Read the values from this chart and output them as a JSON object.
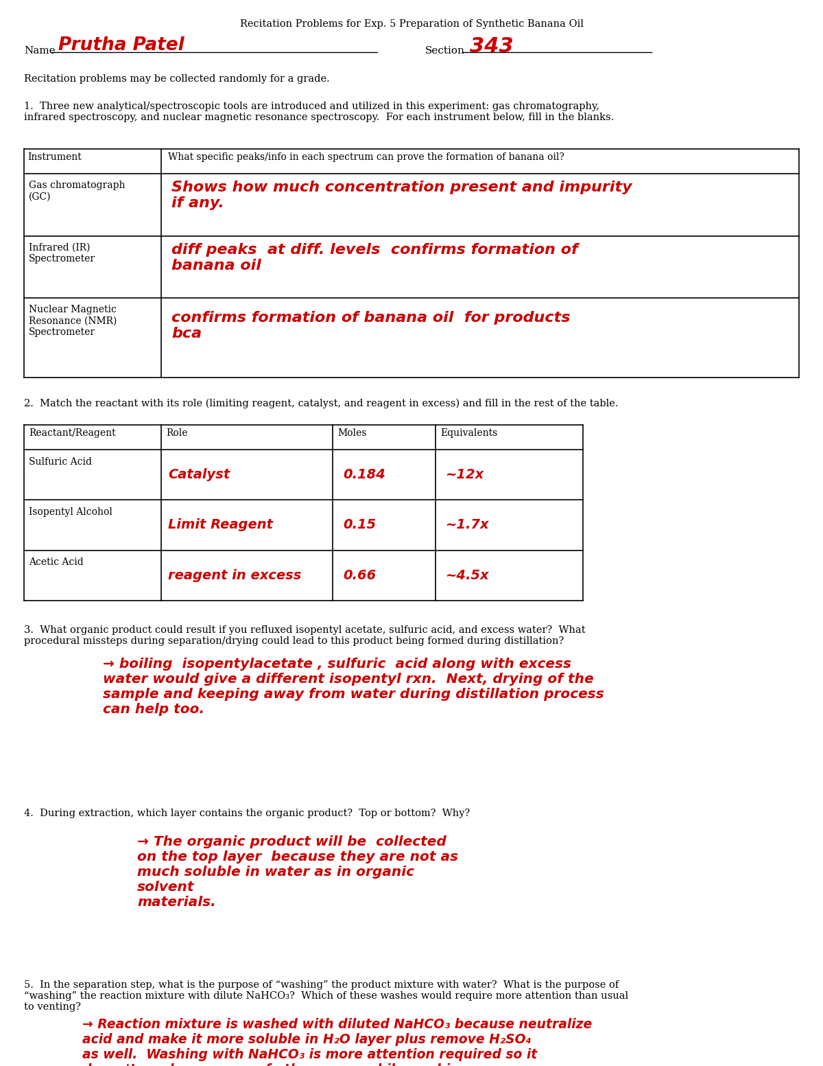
{
  "title": "Recitation Problems for Exp. 5 Preparation of Synthetic Banana Oil",
  "name_label": "Name",
  "name_value": "Prutha Patel",
  "section_label": "Section",
  "section_value": "343",
  "intro_text": "Recitation problems may be collected randomly for a grade.",
  "q1_text": "1.  Three new analytical/spectroscopic tools are introduced and utilized in this experiment: gas chromatography,\ninfrared spectroscopy, and nuclear magnetic resonance spectroscopy.  For each instrument below, fill in the blanks.",
  "table1_headers": [
    "Instrument",
    "What specific peaks/info in each spectrum can prove the formation of banana oil?"
  ],
  "table1_rows": [
    [
      "Gas chromatograph\n(GC)",
      "Shows how much concentration present and impurity\nif any."
    ],
    [
      "Infrared (IR)\nSpectrometer",
      "diff peaks  at diff. levels  confirms formation of\nbanana oil"
    ],
    [
      "Nuclear Magnetic\nResonance (NMR)\nSpectrometer",
      "confirms formation of banana oil  for products\nbca"
    ]
  ],
  "q2_text": "2.  Match the reactant with its role (limiting reagent, catalyst, and reagent in excess) and fill in the rest of the table.",
  "table2_headers": [
    "Reactant/Reagent",
    "Role",
    "Moles",
    "Equivalents"
  ],
  "table2_rows": [
    [
      "Sulfuric Acid",
      "Catalyst",
      "0.184",
      "~12x"
    ],
    [
      "Isopentyl Alcohol",
      "Limit Reagent",
      "0.15",
      "~1.7x"
    ],
    [
      "Acetic Acid",
      "reagent in excess",
      "0.66",
      "~4.5x"
    ]
  ],
  "q3_text": "3.  What organic product could result if you refluxed isopentyl acetate, sulfuric acid, and excess water?  What\nprocedural missteps during separation/drying could lead to this product being formed during distillation?",
  "q3_answer": "→ boiling  isopentylacetate , sulfuric  acid along with excess\nwater would give a different isopentyl rxn.  Next, drying of the\nsample and keeping away from water during distillation process\ncan help too.",
  "q4_text": "4.  During extraction, which layer contains the organic product?  Top or bottom?  Why?",
  "q4_answer": "→ The organic product will be  collected\non the top layer  because they are not as\nmuch soluble in water as in organic\nsolvent\nmaterials.",
  "q5_text": "5.  In the separation step, what is the purpose of “washing” the product mixture with water?  What is the purpose of\n“washing” the reaction mixture with dilute NaHCO₃?  Which of these washes would require more attention than usual\nto venting?",
  "q5_answer": "→ Reaction mixture is washed with diluted NaHCO₃ because neutralize\nacid and make it more soluble in H₂O layer plus remove H₂SO₄\nas well.  Washing with NaHCO₃ is more attention required so it\ndoesn't produce access of other gases while washing.",
  "bg_color": "#ffffff",
  "text_color": "#000000",
  "red_color": "#cc0000",
  "line_color": "#000000"
}
